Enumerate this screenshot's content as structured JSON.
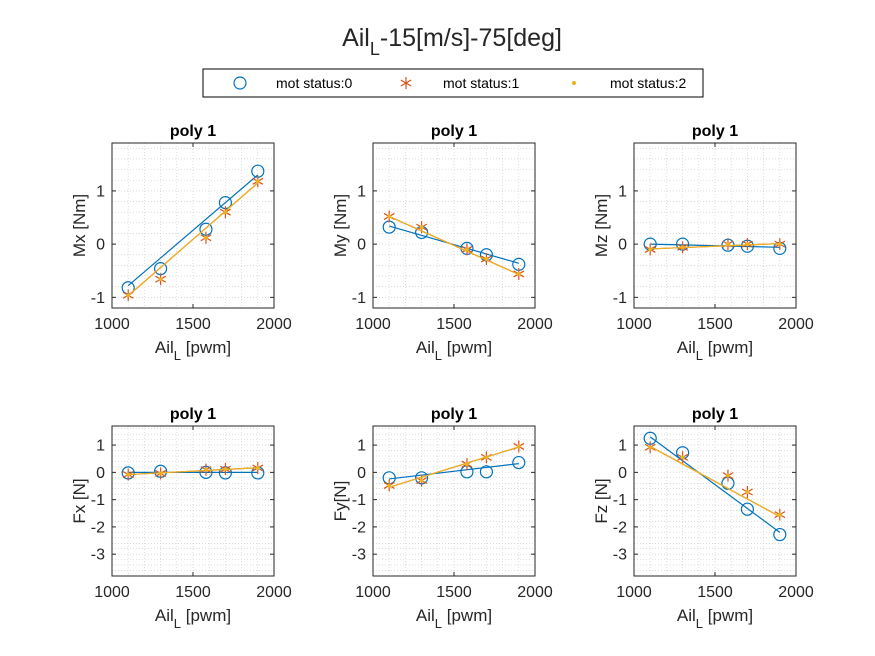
{
  "figure": {
    "title_main": "Ail",
    "title_sub": "L",
    "title_rest": "-15[m/s]-75[deg]"
  },
  "legend": {
    "position": "top-center",
    "entries": [
      {
        "label": "mot status:0",
        "marker": "circle",
        "color": "#0072BD"
      },
      {
        "label": "mot status:1",
        "marker": "asterisk",
        "color": "#D95319"
      },
      {
        "label": "mot status:2",
        "marker": "dot",
        "color": "#EDB120"
      }
    ]
  },
  "colors": {
    "status0": "#0072BD",
    "status1": "#D95319",
    "status2": "#EDB120",
    "axis": "#262626",
    "grid": "#c8c8c8"
  },
  "chart_data": [
    {
      "type": "line",
      "title": "poly 1",
      "xlabel_main": "Ail",
      "xlabel_sub": "L",
      "xlabel_rest": " [pwm]",
      "ylabel": "Mx [Nm]",
      "xlim": [
        1000,
        2000
      ],
      "ylim": [
        -1.2,
        1.9
      ],
      "xticks": [
        1000,
        1500,
        2000
      ],
      "yticks": [
        -1,
        0,
        1
      ],
      "grid": "minor-dotted",
      "series": [
        {
          "name": "mot status:0",
          "x": [
            1100,
            1300,
            1580,
            1700,
            1900
          ],
          "y": [
            -0.82,
            -0.46,
            0.28,
            0.78,
            1.37
          ],
          "fit": [
            -0.78,
            1.3
          ]
        },
        {
          "name": "mot status:1",
          "x": [
            1100,
            1300,
            1580,
            1700,
            1900
          ],
          "y": [
            -0.96,
            -0.66,
            0.12,
            0.6,
            1.18
          ],
          "fit": [
            -0.97,
            1.15
          ]
        },
        {
          "name": "mot status:2",
          "x": [
            1100,
            1300,
            1580,
            1700,
            1900
          ],
          "y": [
            -0.96,
            -0.66,
            0.12,
            0.6,
            1.18
          ],
          "fit": [
            -0.97,
            1.15
          ]
        }
      ]
    },
    {
      "type": "line",
      "title": "poly 1",
      "xlabel_main": "Ail",
      "xlabel_sub": "L",
      "xlabel_rest": " [pwm]",
      "ylabel": "My [Nm]",
      "xlim": [
        1000,
        2000
      ],
      "ylim": [
        -1.2,
        1.9
      ],
      "xticks": [
        1000,
        1500,
        2000
      ],
      "yticks": [
        -1,
        0,
        1
      ],
      "grid": "minor-dotted",
      "series": [
        {
          "name": "mot status:0",
          "x": [
            1100,
            1300,
            1580,
            1700,
            1900
          ],
          "y": [
            0.32,
            0.22,
            -0.08,
            -0.2,
            -0.38
          ],
          "fit": [
            0.34,
            -0.36
          ]
        },
        {
          "name": "mot status:1",
          "x": [
            1100,
            1300,
            1580,
            1700,
            1900
          ],
          "y": [
            0.52,
            0.32,
            -0.1,
            -0.28,
            -0.56
          ],
          "fit": [
            0.52,
            -0.57
          ]
        },
        {
          "name": "mot status:2",
          "x": [
            1100,
            1300,
            1580,
            1700,
            1900
          ],
          "y": [
            0.52,
            0.32,
            -0.1,
            -0.28,
            -0.56
          ],
          "fit": [
            0.52,
            -0.57
          ]
        }
      ]
    },
    {
      "type": "line",
      "title": "poly 1",
      "xlabel_main": "Ail",
      "xlabel_sub": "L",
      "xlabel_rest": " [pwm]",
      "ylabel": "Mz [Nm]",
      "xlim": [
        1000,
        2000
      ],
      "ylim": [
        -1.2,
        1.9
      ],
      "xticks": [
        1000,
        1500,
        2000
      ],
      "yticks": [
        -1,
        0,
        1
      ],
      "grid": "minor-dotted",
      "series": [
        {
          "name": "mot status:0",
          "x": [
            1100,
            1300,
            1580,
            1700,
            1900
          ],
          "y": [
            0.0,
            0.0,
            -0.02,
            -0.04,
            -0.08
          ],
          "fit": [
            0.0,
            -0.06
          ]
        },
        {
          "name": "mot status:1",
          "x": [
            1100,
            1300,
            1580,
            1700,
            1900
          ],
          "y": [
            -0.1,
            -0.06,
            0.0,
            0.0,
            0.0
          ],
          "fit": [
            -0.09,
            0.01
          ]
        },
        {
          "name": "mot status:2",
          "x": [
            1100,
            1300,
            1580,
            1700,
            1900
          ],
          "y": [
            -0.1,
            -0.06,
            0.0,
            0.0,
            0.0
          ],
          "fit": [
            -0.09,
            0.01
          ]
        }
      ]
    },
    {
      "type": "line",
      "title": "poly 1",
      "xlabel_main": "Ail",
      "xlabel_sub": "L",
      "xlabel_rest": " [pwm]",
      "ylabel": "Fx [N]",
      "xlim": [
        1000,
        2000
      ],
      "ylim": [
        -3.8,
        1.7
      ],
      "xticks": [
        1000,
        1500,
        2000
      ],
      "yticks": [
        -3,
        -2,
        -1,
        0,
        1
      ],
      "grid": "minor-dotted",
      "series": [
        {
          "name": "mot status:0",
          "x": [
            1100,
            1300,
            1580,
            1700,
            1900
          ],
          "y": [
            -0.02,
            0.04,
            0.0,
            -0.02,
            -0.02
          ],
          "fit": [
            0.0,
            0.0
          ]
        },
        {
          "name": "mot status:1",
          "x": [
            1100,
            1300,
            1580,
            1700,
            1900
          ],
          "y": [
            -0.08,
            -0.04,
            0.1,
            0.12,
            0.16
          ],
          "fit": [
            -0.08,
            0.17
          ]
        },
        {
          "name": "mot status:2",
          "x": [
            1100,
            1300,
            1580,
            1700,
            1900
          ],
          "y": [
            -0.08,
            -0.04,
            0.1,
            0.12,
            0.16
          ],
          "fit": [
            -0.08,
            0.17
          ]
        }
      ]
    },
    {
      "type": "line",
      "title": "poly 1",
      "xlabel_main": "Ail",
      "xlabel_sub": "L",
      "xlabel_rest": " [pwm]",
      "ylabel": "Fy[N]",
      "xlim": [
        1000,
        2000
      ],
      "ylim": [
        -3.8,
        1.7
      ],
      "xticks": [
        1000,
        1500,
        2000
      ],
      "yticks": [
        -3,
        -2,
        -1,
        0,
        1
      ],
      "grid": "minor-dotted",
      "series": [
        {
          "name": "mot status:0",
          "x": [
            1100,
            1300,
            1580,
            1700,
            1900
          ],
          "y": [
            -0.2,
            -0.2,
            0.02,
            0.02,
            0.36
          ],
          "fit": [
            -0.24,
            0.32
          ]
        },
        {
          "name": "mot status:1",
          "x": [
            1100,
            1300,
            1580,
            1700,
            1900
          ],
          "y": [
            -0.48,
            -0.3,
            0.3,
            0.55,
            0.95
          ],
          "fit": [
            -0.55,
            0.93
          ]
        },
        {
          "name": "mot status:2",
          "x": [
            1100,
            1300,
            1580,
            1700,
            1900
          ],
          "y": [
            -0.48,
            -0.3,
            0.3,
            0.55,
            0.95
          ],
          "fit": [
            -0.55,
            0.93
          ]
        }
      ]
    },
    {
      "type": "line",
      "title": "poly 1",
      "xlabel_main": "Ail",
      "xlabel_sub": "L",
      "xlabel_rest": " [pwm]",
      "ylabel": "Fz [N]",
      "xlim": [
        1000,
        2000
      ],
      "ylim": [
        -3.8,
        1.7
      ],
      "xticks": [
        1000,
        1500,
        2000
      ],
      "yticks": [
        -3,
        -2,
        -1,
        0,
        1
      ],
      "grid": "minor-dotted",
      "series": [
        {
          "name": "mot status:0",
          "x": [
            1100,
            1300,
            1580,
            1700,
            1900
          ],
          "y": [
            1.25,
            0.72,
            -0.4,
            -1.35,
            -2.28
          ],
          "fit": [
            1.3,
            -2.2
          ]
        },
        {
          "name": "mot status:1",
          "x": [
            1100,
            1300,
            1580,
            1700,
            1900
          ],
          "y": [
            0.92,
            0.55,
            -0.12,
            -0.72,
            -1.55
          ],
          "fit": [
            0.95,
            -1.62
          ]
        },
        {
          "name": "mot status:2",
          "x": [
            1100,
            1300,
            1580,
            1700,
            1900
          ],
          "y": [
            0.92,
            0.55,
            -0.12,
            -0.72,
            -1.55
          ],
          "fit": [
            0.95,
            -1.62
          ]
        }
      ]
    }
  ]
}
